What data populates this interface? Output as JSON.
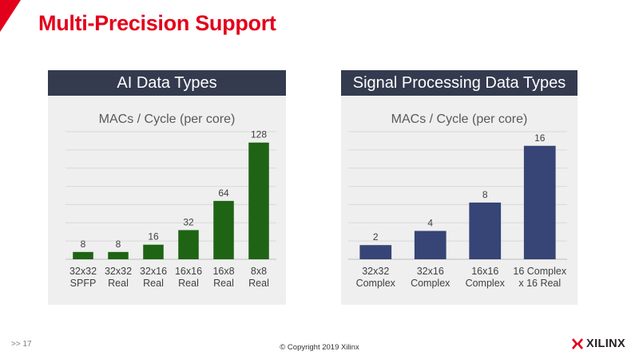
{
  "slide": {
    "title": "Multi-Precision Support",
    "page_number": ">> 17",
    "copyright": "© Copyright 2019 Xilinx",
    "logo_text": "XILINX",
    "brand_color": "#e3001b",
    "header_color": "#343b4f"
  },
  "panels": {
    "ai": {
      "heading": "AI Data Types"
    },
    "sp": {
      "heading": "Signal Processing Data Types"
    }
  },
  "chart_data": [
    {
      "type": "bar",
      "title": "MACs / Cycle (per core)",
      "categories": [
        [
          "32x32",
          "SPFP"
        ],
        [
          "32x32",
          "Real"
        ],
        [
          "32x16",
          "Real"
        ],
        [
          "16x16",
          "Real"
        ],
        [
          "16x8",
          "Real"
        ],
        [
          "8x8",
          "Real"
        ]
      ],
      "values": [
        8,
        8,
        16,
        32,
        64,
        128
      ],
      "ylim": [
        0,
        140
      ],
      "grid": true,
      "bar_color": "#1e6414"
    },
    {
      "type": "bar",
      "title": "MACs / Cycle (per core)",
      "categories": [
        [
          "32x32",
          "Complex"
        ],
        [
          "32x16",
          "Complex"
        ],
        [
          "16x16",
          "Complex"
        ],
        [
          "16 Complex",
          "x 16 Real"
        ]
      ],
      "values": [
        2,
        4,
        8,
        16
      ],
      "ylim": [
        0,
        18
      ],
      "grid": true,
      "bar_color": "#364476"
    }
  ]
}
